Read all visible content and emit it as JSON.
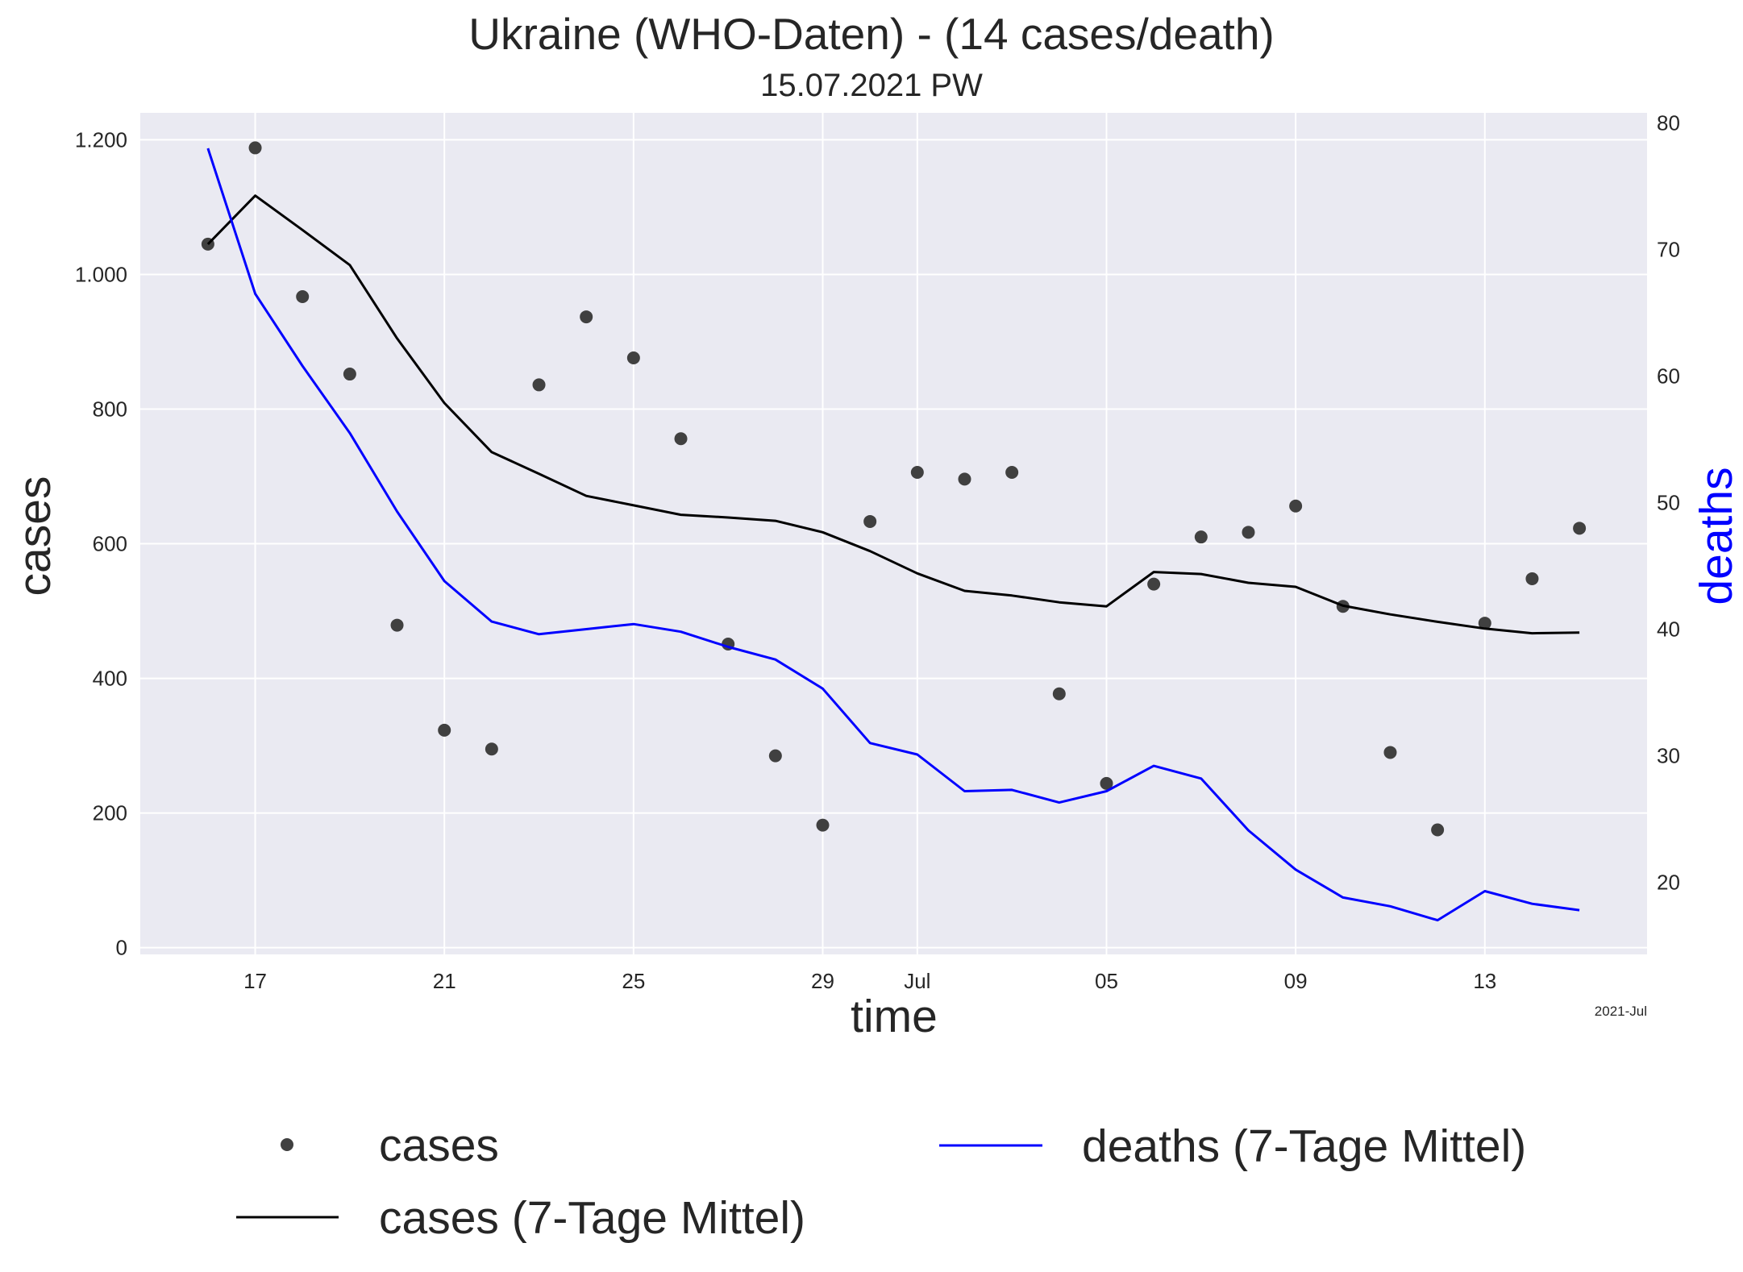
{
  "chart_data": {
    "type": "line",
    "title": "Ukraine (WHO-Daten) - (14 cases/death)",
    "subtitle": "15.07.2021 PW",
    "xlabel": "time",
    "ylabel": "cases",
    "y2label": "deaths",
    "x_offset_label": "2021-Jul",
    "dates": [
      "2021-06-16",
      "2021-06-17",
      "2021-06-18",
      "2021-06-19",
      "2021-06-20",
      "2021-06-21",
      "2021-06-22",
      "2021-06-23",
      "2021-06-24",
      "2021-06-25",
      "2021-06-26",
      "2021-06-27",
      "2021-06-28",
      "2021-06-29",
      "2021-06-30",
      "2021-07-01",
      "2021-07-02",
      "2021-07-03",
      "2021-07-04",
      "2021-07-05",
      "2021-07-06",
      "2021-07-07",
      "2021-07-08",
      "2021-07-09",
      "2021-07-10",
      "2021-07-11",
      "2021-07-12",
      "2021-07-13",
      "2021-07-14",
      "2021-07-15"
    ],
    "x_ticks": [
      {
        "date": "2021-06-17",
        "label": "17"
      },
      {
        "date": "2021-06-21",
        "label": "21"
      },
      {
        "date": "2021-06-25",
        "label": "25"
      },
      {
        "date": "2021-06-29",
        "label": "29"
      },
      {
        "date": "2021-07-01",
        "label": "Jul"
      },
      {
        "date": "2021-07-05",
        "label": "05"
      },
      {
        "date": "2021-07-09",
        "label": "09"
      },
      {
        "date": "2021-07-13",
        "label": "13"
      }
    ],
    "y_left": {
      "min": -10,
      "max": 1240,
      "ticks": [
        0,
        200,
        400,
        600,
        800,
        1000,
        1200
      ],
      "tick_labels": [
        "0",
        "200",
        "400",
        "600",
        "800",
        "1.000",
        "1.200"
      ]
    },
    "y_right": {
      "min": 14.3,
      "max": 80.8,
      "ticks": [
        20,
        30,
        40,
        50,
        60,
        70,
        80
      ],
      "tick_labels": [
        "20",
        "30",
        "40",
        "50",
        "60",
        "70",
        "80"
      ]
    },
    "grid": true,
    "legend_position": "below",
    "series": [
      {
        "name": "cases",
        "type": "scatter",
        "axis": "left",
        "color": "#404040",
        "values": [
          1045,
          1188,
          967,
          852,
          479,
          323,
          295,
          836,
          937,
          876,
          756,
          451,
          285,
          182,
          633,
          706,
          696,
          706,
          377,
          244,
          540,
          610,
          617,
          656,
          507,
          290,
          175,
          482,
          548,
          623
        ]
      },
      {
        "name": "cases (7-Tage Mittel)",
        "type": "line",
        "axis": "left",
        "color": "#000000",
        "values": [
          1045,
          1117,
          1066,
          1014,
          905,
          809,
          736,
          704,
          671,
          657,
          643,
          639,
          634,
          617,
          589,
          556,
          530,
          523,
          513,
          507,
          558,
          555,
          542,
          536,
          508,
          495,
          484,
          474,
          467,
          468
        ]
      },
      {
        "name": "deaths (7-Tage Mittel)",
        "type": "line",
        "axis": "right",
        "color": "#0000ff",
        "values": [
          78.0,
          66.5,
          60.8,
          55.5,
          49.3,
          43.8,
          40.6,
          39.6,
          40.0,
          40.4,
          39.8,
          38.6,
          37.6,
          35.3,
          31.0,
          30.1,
          27.2,
          27.3,
          26.3,
          27.2,
          29.2,
          28.2,
          24.1,
          21.0,
          18.8,
          18.1,
          17.0,
          19.3,
          18.3,
          17.8
        ]
      }
    ]
  }
}
